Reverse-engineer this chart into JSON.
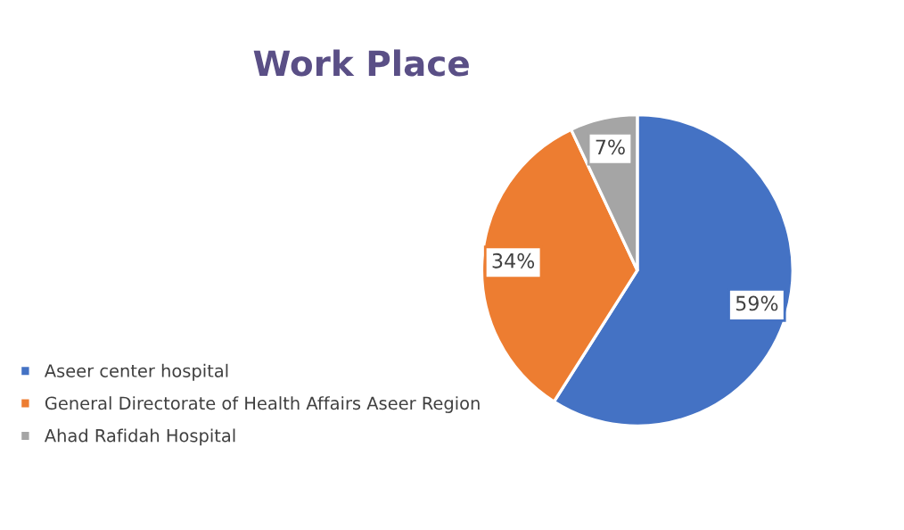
{
  "chart_data": {
    "type": "pie",
    "title": "Work Place",
    "categories": [
      "Aseer center hospital",
      "General Directorate of Health Affairs Aseer Region",
      "Ahad Rafidah Hospital"
    ],
    "values": [
      59,
      34,
      7
    ],
    "colors": [
      "#4472c4",
      "#ed7d31",
      "#a5a5a5"
    ],
    "value_labels": [
      "59%",
      "34%",
      "7%"
    ],
    "legend": "left"
  }
}
